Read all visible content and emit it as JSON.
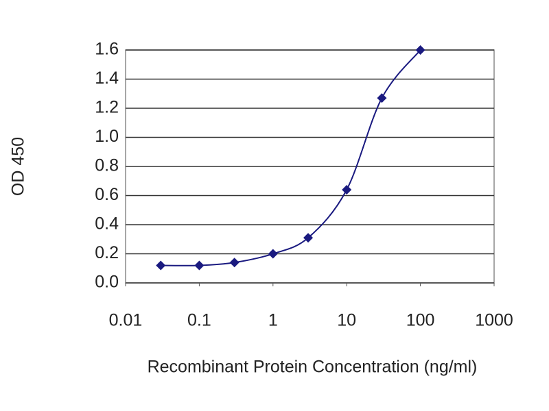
{
  "chart_data": {
    "type": "line",
    "x_label": "Recombinant Protein Concentration (ng/ml)",
    "y_label": "OD 450",
    "xscale": "log",
    "x": [
      0.03,
      0.1,
      0.3,
      1,
      3,
      10,
      30,
      100
    ],
    "series": [
      {
        "color": "#1a1a80",
        "values": [
          0.12,
          0.12,
          0.14,
          0.2,
          0.31,
          0.64,
          1.27,
          1.6
        ]
      }
    ],
    "xlim": [
      0.01,
      1000
    ],
    "xticks": [
      0.01,
      0.1,
      1,
      10,
      100,
      1000
    ],
    "ylim": [
      0,
      1.6
    ],
    "yticks": [
      {
        "value": 0,
        "label": "0.0"
      },
      0.2,
      0.4,
      0.6,
      0.8,
      {
        "value": 1,
        "label": "1.0"
      },
      1.2,
      1.4,
      1.6
    ],
    "grid": true
  }
}
